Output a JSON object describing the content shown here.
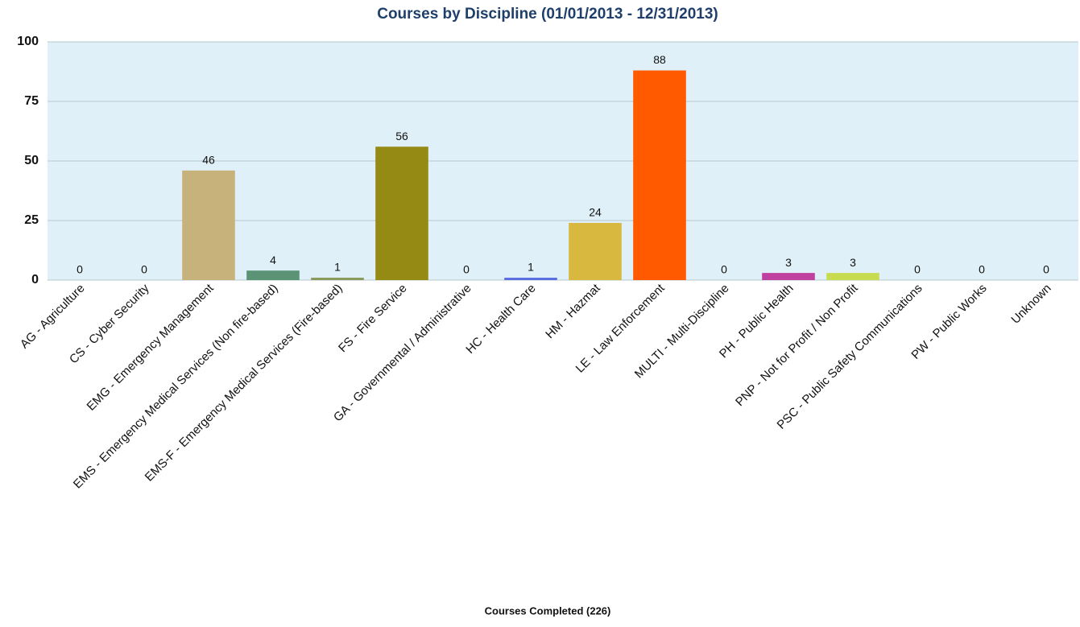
{
  "chart_data": {
    "type": "bar",
    "title": "Courses by Discipline (01/01/2013 - 12/31/2013)",
    "x_label": "Courses Completed (226)",
    "categories": [
      "AG - Agriculture",
      "CS - Cyber Security",
      "EMG - Emergency Management",
      "EMS - Emergency Medical Services (Non fire-based)",
      "EMS-F - Emergency Medical Services (Fire-based)",
      "FS - Fire Service",
      "GA - Governmental / Administrative",
      "HC - Health Care",
      "HM - Hazmat",
      "LE - Law Enforcement",
      "MULTI - Multi-Discipline",
      "PH - Public Health",
      "PNP - Not for Profit / Non Profit",
      "PSC - Public Safety Communications",
      "PW - Public Works",
      "Unknown"
    ],
    "values": [
      0,
      0,
      46,
      4,
      1,
      56,
      0,
      1,
      24,
      88,
      0,
      3,
      3,
      0,
      0,
      0
    ],
    "colors": [
      "#4a7ab0",
      "#a05050",
      "#c8b27c",
      "#5a9475",
      "#8a9a5b",
      "#948a14",
      "#7a5aa0",
      "#5b6ee0",
      "#d9b840",
      "#ff5a00",
      "#40a0a0",
      "#c040a0",
      "#c8dc50",
      "#6080c0",
      "#a0a040",
      "#808080"
    ],
    "ylim": [
      0,
      100
    ],
    "yticks": [
      0,
      25,
      50,
      75,
      100
    ],
    "grid": true
  }
}
